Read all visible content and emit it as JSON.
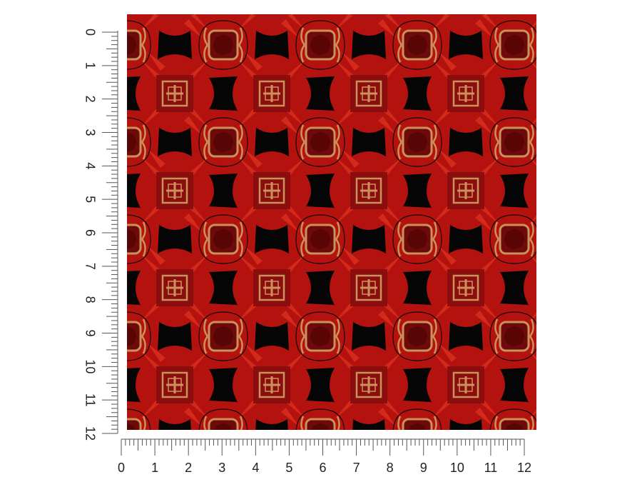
{
  "rulers": {
    "vertical": {
      "labels": [
        0,
        1,
        2,
        3,
        4,
        5,
        6,
        7,
        8,
        9,
        10,
        11,
        12
      ]
    },
    "horizontal": {
      "labels": [
        0,
        1,
        2,
        3,
        4,
        5,
        6,
        7,
        8,
        9,
        10,
        11,
        12
      ]
    }
  }
}
